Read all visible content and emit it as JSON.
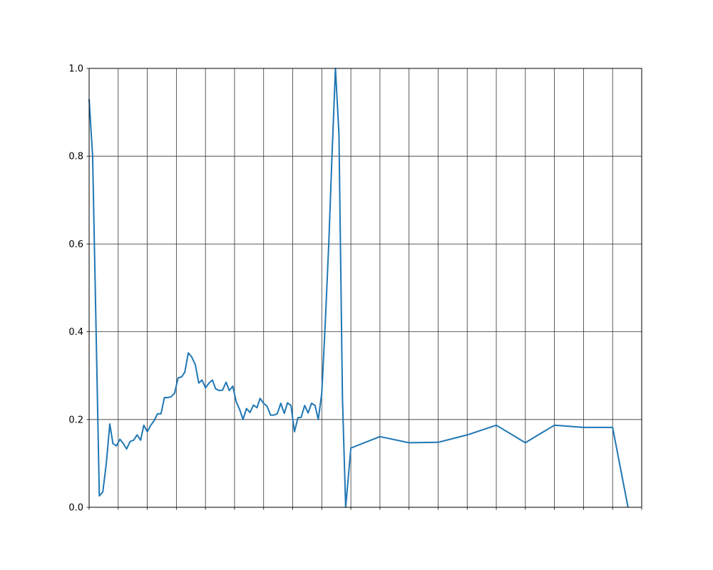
{
  "chart_data": {
    "type": "line",
    "title": "",
    "xlabel": "",
    "ylabel": "",
    "ylim": [
      0,
      1
    ],
    "xlim": [
      0,
      19
    ],
    "grid": true,
    "y_ticks": [
      0.0,
      0.2,
      0.4,
      0.6,
      0.8,
      1.0
    ],
    "y_tick_labels": [
      "0.0",
      "0.2",
      "0.4",
      "0.6",
      "0.8",
      "1.0"
    ],
    "x_ticks": [
      0,
      1,
      2,
      3,
      4,
      5,
      6,
      7,
      8,
      9,
      10,
      11,
      12,
      13,
      14,
      15,
      16,
      17,
      18,
      19
    ],
    "x_tick_labels": [],
    "series": [
      {
        "color": "#1f77b4",
        "x": [
          0.0,
          0.12,
          0.24,
          0.35,
          0.47,
          0.59,
          0.71,
          0.82,
          0.94,
          1.06,
          1.18,
          1.29,
          1.41,
          1.53,
          1.65,
          1.77,
          1.88,
          2.0,
          2.12,
          2.24,
          2.35,
          2.47,
          2.59,
          2.71,
          2.82,
          2.94,
          3.06,
          3.18,
          3.29,
          3.41,
          3.53,
          3.65,
          3.77,
          3.88,
          4.0,
          4.12,
          4.24,
          4.35,
          4.47,
          4.59,
          4.71,
          4.82,
          4.94,
          5.06,
          5.18,
          5.29,
          5.41,
          5.53,
          5.65,
          5.77,
          5.88,
          6.0,
          6.12,
          6.24,
          6.35,
          6.47,
          6.59,
          6.71,
          6.82,
          6.94,
          7.06,
          7.18,
          7.29,
          7.41,
          7.53,
          7.65,
          7.77,
          7.88,
          8.0,
          8.12,
          8.24,
          8.35,
          8.47,
          8.59,
          8.71,
          8.82,
          9.0,
          10.0,
          11.0,
          12.0,
          13.0,
          14.0,
          15.0,
          16.0,
          17.0,
          18.0,
          18.53
        ],
        "values": [
          0.93,
          0.8,
          0.4,
          0.026,
          0.035,
          0.1,
          0.19,
          0.145,
          0.14,
          0.155,
          0.145,
          0.133,
          0.15,
          0.153,
          0.165,
          0.153,
          0.187,
          0.172,
          0.187,
          0.198,
          0.213,
          0.213,
          0.25,
          0.25,
          0.252,
          0.26,
          0.295,
          0.297,
          0.308,
          0.352,
          0.342,
          0.325,
          0.283,
          0.29,
          0.272,
          0.283,
          0.29,
          0.27,
          0.266,
          0.267,
          0.285,
          0.266,
          0.276,
          0.24,
          0.222,
          0.2,
          0.225,
          0.216,
          0.233,
          0.227,
          0.248,
          0.237,
          0.23,
          0.21,
          0.21,
          0.213,
          0.237,
          0.214,
          0.238,
          0.232,
          0.172,
          0.204,
          0.205,
          0.232,
          0.215,
          0.237,
          0.232,
          0.2,
          0.26,
          0.42,
          0.6,
          0.8,
          1.0,
          0.85,
          0.25,
          0.0,
          0.135,
          0.161,
          0.147,
          0.148,
          0.165,
          0.187,
          0.147,
          0.187,
          0.182,
          0.182,
          0.0
        ]
      }
    ]
  }
}
